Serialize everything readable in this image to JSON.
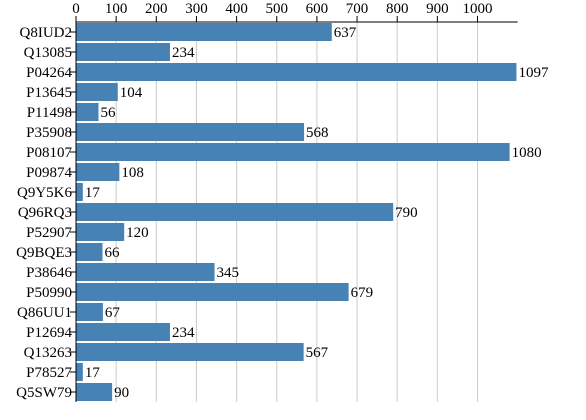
{
  "chart_data": {
    "type": "bar",
    "orientation": "horizontal",
    "title": "",
    "xlabel": "",
    "ylabel": "",
    "xlim": [
      0,
      1100
    ],
    "x_ticks": [
      0,
      100,
      200,
      300,
      400,
      500,
      600,
      700,
      800,
      900,
      1000
    ],
    "grid": true,
    "bar_color": "#4682b4",
    "categories": [
      "Q8IUD2",
      "Q13085",
      "P04264",
      "P13645",
      "P11498",
      "P35908",
      "P08107",
      "P09874",
      "Q9Y5K6",
      "Q96RQ3",
      "P52907",
      "Q9BQE3",
      "P38646",
      "P50990",
      "Q86UU1",
      "P12694",
      "Q13263",
      "P78527",
      "Q5SW79"
    ],
    "values": [
      637,
      234,
      1097,
      104,
      56,
      568,
      1080,
      108,
      17,
      790,
      120,
      66,
      345,
      679,
      67,
      234,
      567,
      17,
      90
    ]
  }
}
